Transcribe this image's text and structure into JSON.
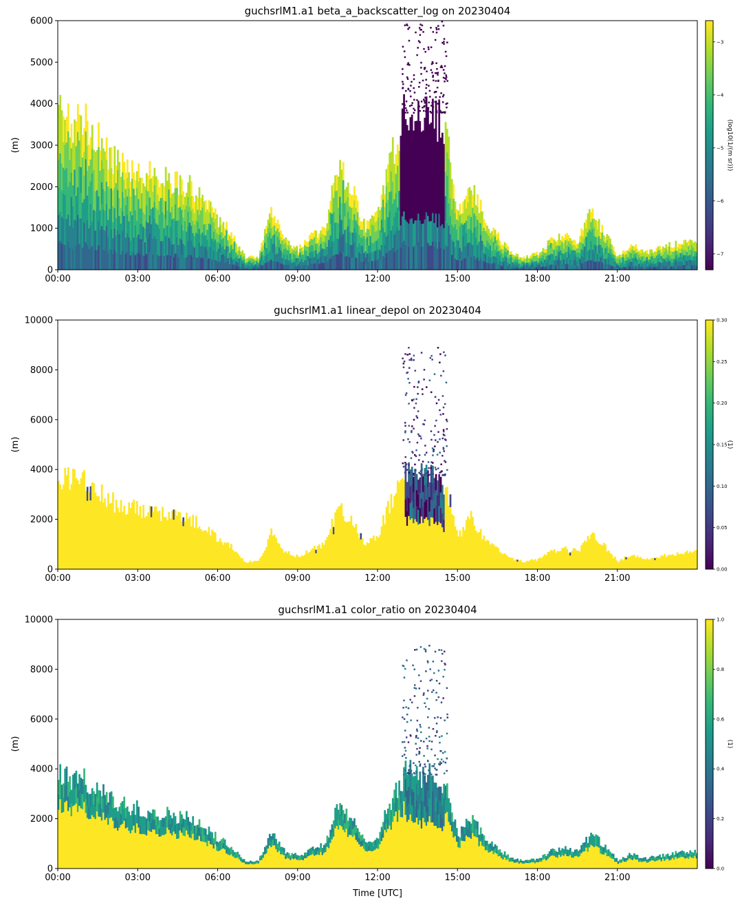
{
  "figure": {
    "xlabel": "Time [UTC]"
  },
  "colors": {
    "viridis": [
      "#440154",
      "#482878",
      "#3e4989",
      "#31688e",
      "#26828e",
      "#1f9e89",
      "#35b779",
      "#6ece58",
      "#b5de2b",
      "#fde725"
    ]
  },
  "chart_data": [
    {
      "type": "heatmap",
      "title": "guchsrlM1.a1 beta_a_backscatter_log on 20230404",
      "xlabel": "",
      "ylabel": "(m)",
      "xlim": [
        0,
        24
      ],
      "ylim": [
        0,
        6000
      ],
      "xticks": [
        0,
        3,
        6,
        9,
        12,
        15,
        18,
        21
      ],
      "xticklabels": [
        "00:00",
        "03:00",
        "06:00",
        "09:00",
        "12:00",
        "15:00",
        "18:00",
        "21:00"
      ],
      "yticks": [
        0,
        1000,
        2000,
        3000,
        4000,
        5000,
        6000
      ],
      "yticklabels": [
        "0",
        "1000",
        "2000",
        "3000",
        "4000",
        "5000",
        "6000"
      ],
      "colorbar": {
        "label": "(log10(1/(m sr)))",
        "vmin": -7.3,
        "vmax": -2.6,
        "ticks": [
          -3,
          -4,
          -5,
          -6,
          -7
        ],
        "ticklabels": [
          "−3",
          "−4",
          "−5",
          "−6",
          "−7"
        ]
      },
      "cloud_top_profile": {
        "time_hours": [
          0,
          0.5,
          1,
          2,
          3,
          4,
          5,
          6,
          6.5,
          7,
          7.5,
          8,
          8.5,
          9,
          9.5,
          10,
          10.5,
          11,
          11.5,
          12,
          12.5,
          13,
          13.5,
          14,
          14.5,
          15,
          15.5,
          16,
          16.5,
          17,
          17.5,
          18,
          18.5,
          19,
          19.5,
          20,
          20.5,
          21,
          21.5,
          22,
          22.5,
          23,
          24
        ],
        "top_m": [
          3800,
          3600,
          3500,
          2700,
          2400,
          2200,
          2000,
          1200,
          900,
          300,
          300,
          1500,
          700,
          500,
          800,
          1000,
          2500,
          2000,
          1000,
          1400,
          2800,
          3800,
          3800,
          3700,
          3500,
          1300,
          2100,
          1200,
          800,
          400,
          300,
          400,
          700,
          800,
          700,
          1400,
          900,
          300,
          600,
          400,
          500,
          600,
          700
        ]
      }
    },
    {
      "type": "heatmap",
      "title": "guchsrlM1.a1 linear_depol on 20230404",
      "xlabel": "",
      "ylabel": "(m)",
      "xlim": [
        0,
        24
      ],
      "ylim": [
        0,
        10000
      ],
      "xticks": [
        0,
        3,
        6,
        9,
        12,
        15,
        18,
        21
      ],
      "xticklabels": [
        "00:00",
        "03:00",
        "06:00",
        "09:00",
        "12:00",
        "15:00",
        "18:00",
        "21:00"
      ],
      "yticks": [
        0,
        2000,
        4000,
        6000,
        8000,
        10000
      ],
      "yticklabels": [
        "0",
        "2000",
        "4000",
        "6000",
        "8000",
        "10000"
      ],
      "colorbar": {
        "label": "(1)",
        "vmin": 0.0,
        "vmax": 0.3,
        "ticks": [
          0.0,
          0.05,
          0.1,
          0.15,
          0.2,
          0.25,
          0.3
        ],
        "ticklabels": [
          "0.00",
          "0.05",
          "0.10",
          "0.15",
          "0.20",
          "0.25",
          "0.30"
        ]
      }
    },
    {
      "type": "heatmap",
      "title": "guchsrlM1.a1 color_ratio on 20230404",
      "xlabel": "Time [UTC]",
      "ylabel": "(m)",
      "xlim": [
        0,
        24
      ],
      "ylim": [
        0,
        10000
      ],
      "xticks": [
        0,
        3,
        6,
        9,
        12,
        15,
        18,
        21
      ],
      "xticklabels": [
        "00:00",
        "03:00",
        "06:00",
        "09:00",
        "12:00",
        "15:00",
        "18:00",
        "21:00"
      ],
      "yticks": [
        0,
        2000,
        4000,
        6000,
        8000,
        10000
      ],
      "yticklabels": [
        "0",
        "2000",
        "4000",
        "6000",
        "8000",
        "10000"
      ],
      "colorbar": {
        "label": "(1)",
        "vmin": 0.0,
        "vmax": 1.0,
        "ticks": [
          0.0,
          0.2,
          0.4,
          0.6,
          0.8,
          1.0
        ],
        "ticklabels": [
          "0.0",
          "0.2",
          "0.4",
          "0.6",
          "0.8",
          "1.0"
        ]
      }
    }
  ]
}
